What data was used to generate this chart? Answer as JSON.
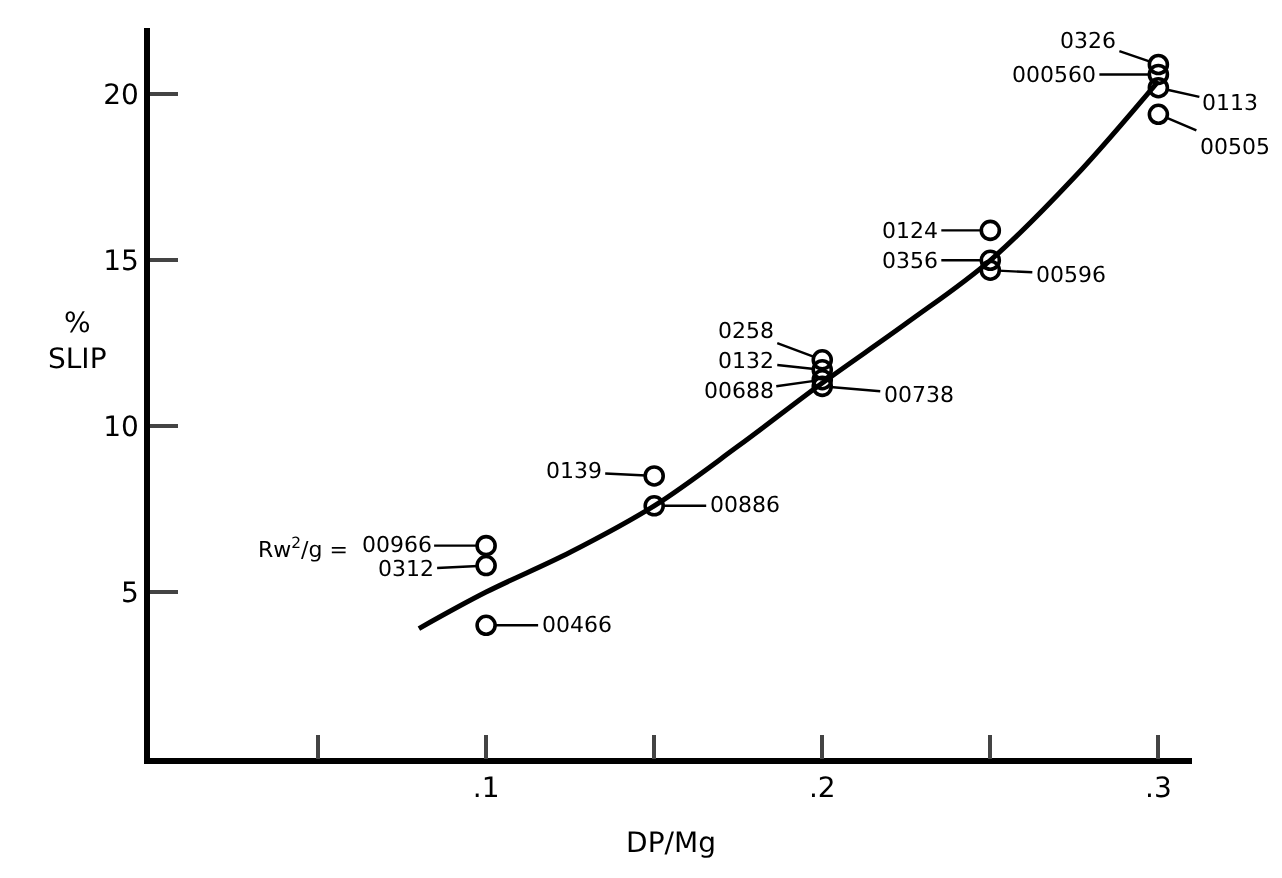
{
  "chart_data": {
    "type": "scatter",
    "xlabel": "DP/Mg",
    "ylabel": "%\nSLIP",
    "xlim": [
      0,
      0.31
    ],
    "ylim": [
      0,
      22
    ],
    "xticks": [
      {
        "value": 0.05,
        "label": null
      },
      {
        "value": 0.1,
        "label": ".1"
      },
      {
        "value": 0.15,
        "label": null
      },
      {
        "value": 0.2,
        "label": ".2"
      },
      {
        "value": 0.25,
        "label": null
      },
      {
        "value": 0.3,
        "label": ".3"
      }
    ],
    "yticks": [
      5,
      10,
      15,
      20
    ],
    "marker": "circle",
    "series": [
      {
        "color": "#000000",
        "x": [
          0.1,
          0.1,
          0.1,
          0.15,
          0.15,
          0.2,
          0.2,
          0.2,
          0.2,
          0.25,
          0.25,
          0.25,
          0.3,
          0.3,
          0.3,
          0.3
        ],
        "values": [
          6.4,
          5.8,
          4.0,
          8.5,
          7.6,
          12.0,
          11.7,
          11.4,
          11.2,
          15.9,
          15.0,
          14.7,
          20.9,
          20.6,
          20.2,
          19.4
        ]
      },
      {
        "type": "line",
        "color": "#000000",
        "marker": "none",
        "x": [
          0.08,
          0.1,
          0.125,
          0.15,
          0.175,
          0.2,
          0.225,
          0.25,
          0.275,
          0.3
        ],
        "values": [
          3.9,
          5.0,
          6.2,
          7.6,
          9.4,
          11.3,
          13.1,
          15.0,
          17.5,
          20.4
        ]
      }
    ],
    "annotations": [
      {
        "text": "00966",
        "x": 0.1,
        "y": 6.4
      },
      {
        "text": "0312",
        "x": 0.1,
        "y": 5.8
      },
      {
        "text": "00466",
        "x": 0.1,
        "y": 4.0
      },
      {
        "text": "0139",
        "x": 0.15,
        "y": 8.5
      },
      {
        "text": "00886",
        "x": 0.15,
        "y": 7.6
      },
      {
        "text": "0258",
        "x": 0.2,
        "y": 12.0
      },
      {
        "text": "0132",
        "x": 0.2,
        "y": 11.7
      },
      {
        "text": "00688",
        "x": 0.2,
        "y": 11.4
      },
      {
        "text": "00738",
        "x": 0.2,
        "y": 11.2
      },
      {
        "text": "0124",
        "x": 0.25,
        "y": 15.9
      },
      {
        "text": "0356",
        "x": 0.25,
        "y": 15.0
      },
      {
        "text": "00596",
        "x": 0.25,
        "y": 14.7
      },
      {
        "text": "0326",
        "x": 0.3,
        "y": 20.9
      },
      {
        "text": "000560",
        "x": 0.3,
        "y": 20.6
      },
      {
        "text": "0113",
        "x": 0.3,
        "y": 20.2
      },
      {
        "text": "00505",
        "x": 0.3,
        "y": 19.4
      },
      "Rw$^{2}$/g ="
    ]
  }
}
